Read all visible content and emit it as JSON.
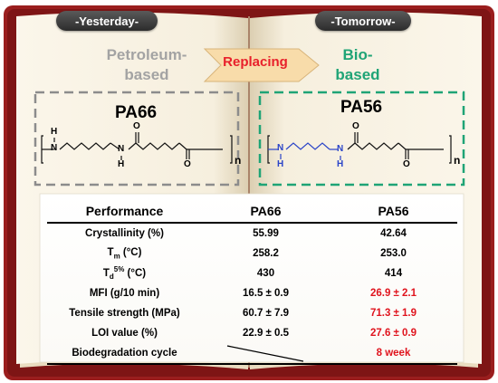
{
  "header": {
    "left_pill": "-Yesterday-",
    "right_pill": "-Tomorrow-"
  },
  "origin": {
    "left_line1": "Petroleum-",
    "left_line2": "based",
    "arrow_label": "Replacing",
    "right_line1": "Bio-",
    "right_line2": "based"
  },
  "structures": {
    "left_title": "PA66",
    "right_title": "PA56",
    "atom_h": "H",
    "atom_n": "N",
    "atom_o": "O",
    "subscript_n": "n"
  },
  "colors": {
    "grey_text": "#a3a3a3",
    "green_text": "#1fa476",
    "arrow_fill": "#f8dcaa",
    "red_value": "#e0141e",
    "blue_amine": "#2a44c8",
    "book_cover": "#9a1e1e"
  },
  "table": {
    "headers": [
      "Performance",
      "PA66",
      "PA56"
    ],
    "rows": [
      {
        "label": "Crystallinity (%)",
        "pa66": "55.99",
        "pa56": "42.64",
        "pa56_highlight": false
      },
      {
        "label": "Tm (°C)",
        "pa66": "258.2",
        "pa56": "253.0",
        "pa56_highlight": false
      },
      {
        "label": "Td5% (°C)",
        "pa66": "430",
        "pa56": "414",
        "pa56_highlight": false
      },
      {
        "label": "MFI (g/10 min)",
        "pa66": "16.5 ± 0.9",
        "pa56": "26.9 ± 2.1",
        "pa56_highlight": true
      },
      {
        "label": "Tensile strength (MPa)",
        "pa66": "60.7 ± 7.9",
        "pa56": "71.3 ± 1.9",
        "pa56_highlight": true
      },
      {
        "label": "LOI value (%)",
        "pa66": "22.9 ± 0.5",
        "pa56": "27.6 ± 0.9",
        "pa56_highlight": true
      },
      {
        "label": "Biodegradation cycle",
        "pa66": "",
        "pa56": "8 week",
        "pa56_highlight": true
      }
    ]
  }
}
